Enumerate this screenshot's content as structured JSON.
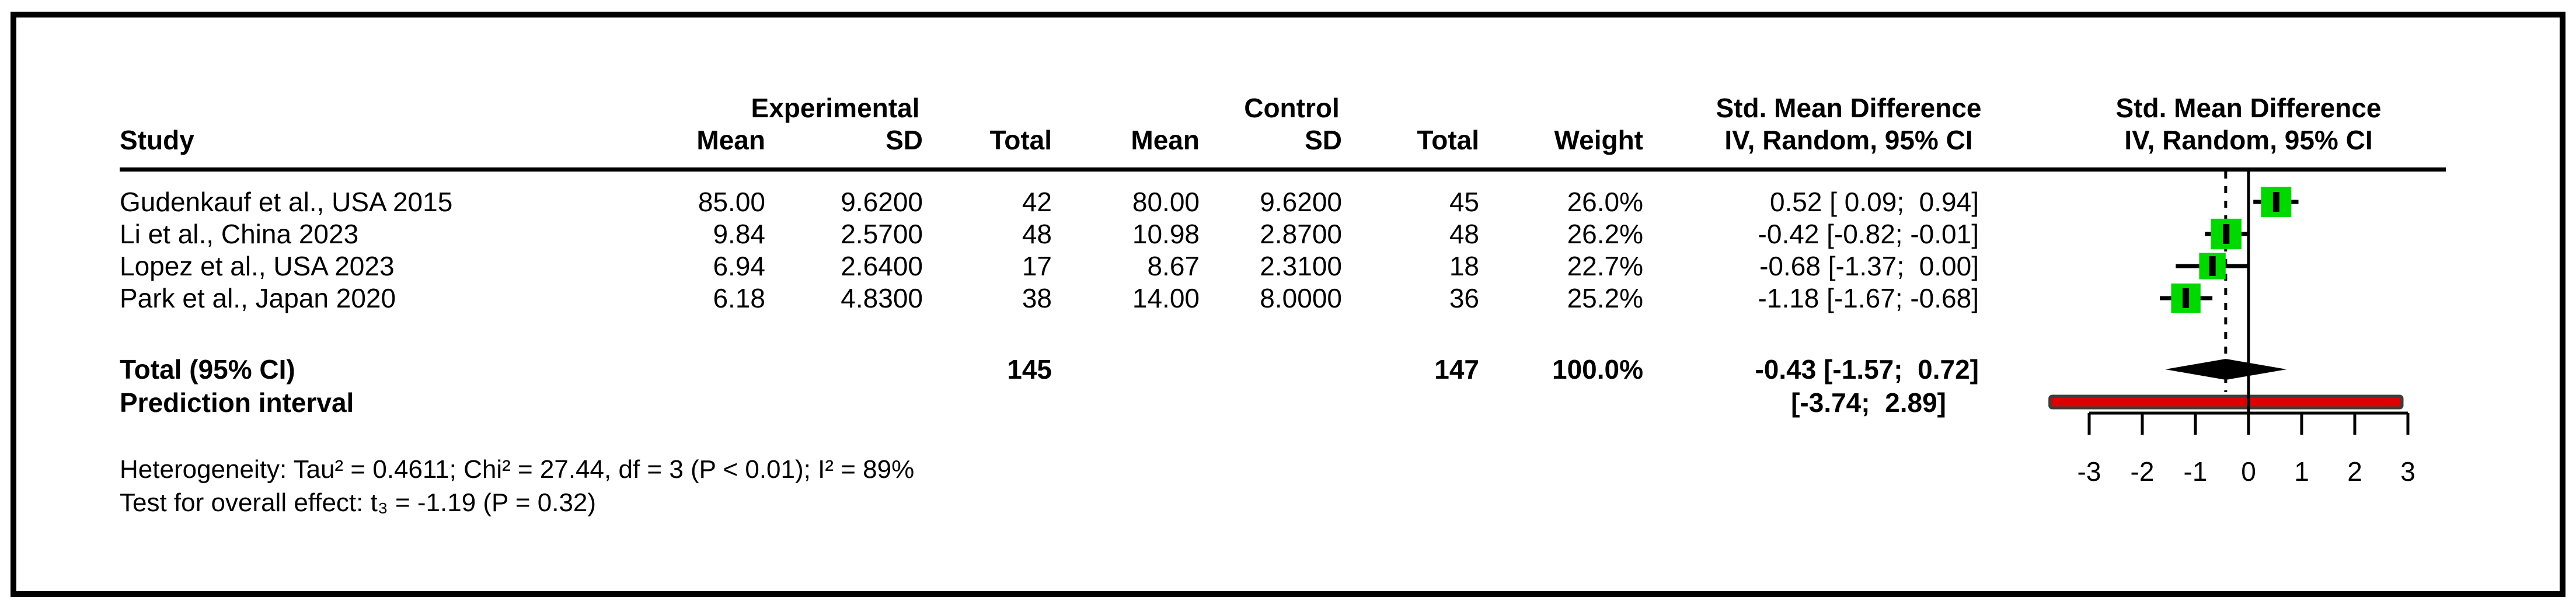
{
  "figure": {
    "columns": {
      "study": "Study",
      "group_experimental": "Experimental",
      "group_control": "Control",
      "mean": "Mean",
      "sd": "SD",
      "total": "Total",
      "weight": "Weight",
      "smd_line1": "Std. Mean Difference",
      "smd_line2": "IV, Random, 95% CI"
    },
    "rows": [
      {
        "study": "Gudenkauf et al., USA 2015",
        "mean_e": "85.00",
        "sd_e": "9.6200",
        "total_e": "42",
        "mean_c": "80.00",
        "sd_c": "9.6200",
        "total_c": "45",
        "weight": "26.0%",
        "smd_ci": "0.52 [ 0.09;  0.94]"
      },
      {
        "study": "Li et al., China 2023",
        "mean_e": "9.84",
        "sd_e": "2.5700",
        "total_e": "48",
        "mean_c": "10.98",
        "sd_c": "2.8700",
        "total_c": "48",
        "weight": "26.2%",
        "smd_ci": "-0.42 [-0.82; -0.01]"
      },
      {
        "study": "Lopez et al., USA 2023",
        "mean_e": "6.94",
        "sd_e": "2.6400",
        "total_e": "17",
        "mean_c": "8.67",
        "sd_c": "2.3100",
        "total_c": "18",
        "weight": "22.7%",
        "smd_ci": "-0.68 [-1.37;  0.00]"
      },
      {
        "study": "Park et al., Japan 2020",
        "mean_e": "6.18",
        "sd_e": "4.8300",
        "total_e": "38",
        "mean_c": "14.00",
        "sd_c": "8.0000",
        "total_c": "36",
        "weight": "25.2%",
        "smd_ci": "-1.18 [-1.67; -0.68]"
      }
    ],
    "total_row": {
      "label": "Total (95% CI)",
      "total_e": "145",
      "total_c": "147",
      "weight": "100.0%",
      "smd_ci": "-0.43 [-1.57;  0.72]"
    },
    "prediction_row": {
      "label": "Prediction interval",
      "interval": "[-3.74;  2.89]"
    },
    "footnotes": {
      "heterogeneity": "Heterogeneity: Tau² = 0.4611; Chi² = 27.44, df = 3 (P < 0.01); I² = 89%",
      "overall_effect": "Test for overall effect: t₃ = -1.19 (P = 0.32)"
    }
  },
  "chart_data": {
    "type": "forest",
    "effect_measure": "Std. Mean Difference",
    "model": "IV, Random, 95% CI",
    "x_axis": {
      "range": [
        -3,
        3
      ],
      "ticks": [
        -3,
        -2,
        -1,
        0,
        1,
        2,
        3
      ],
      "tick_labels": [
        "-3",
        "-2",
        "-1",
        "0",
        "1",
        "2",
        "3"
      ],
      "zero_line": 0,
      "pooled_line": -0.43
    },
    "studies": [
      {
        "name": "Gudenkauf et al., USA 2015",
        "est": 0.52,
        "lo": 0.09,
        "hi": 0.94,
        "weight_pct": 26.0
      },
      {
        "name": "Li et al., China 2023",
        "est": -0.42,
        "lo": -0.82,
        "hi": -0.01,
        "weight_pct": 26.2
      },
      {
        "name": "Lopez et al., USA 2023",
        "est": -0.68,
        "lo": -1.37,
        "hi": 0.0,
        "weight_pct": 22.7
      },
      {
        "name": "Park et al., Japan 2020",
        "est": -1.18,
        "lo": -1.67,
        "hi": -0.68,
        "weight_pct": 25.2
      }
    ],
    "pooled": {
      "label": "Total (95% CI)",
      "est": -0.43,
      "lo": -1.57,
      "hi": 0.72
    },
    "prediction_interval": {
      "lo": -3.74,
      "hi": 2.89
    },
    "totals": {
      "experimental_n": 145,
      "control_n": 147,
      "weight": "100.0%"
    },
    "colors": {
      "square": "#00d900",
      "ci_line": "#000000",
      "point_marker": "#000000",
      "diamond": "#000000",
      "prediction_fill": "#dd0000",
      "prediction_border": "#3d3d3d",
      "axis": "#000000"
    }
  }
}
